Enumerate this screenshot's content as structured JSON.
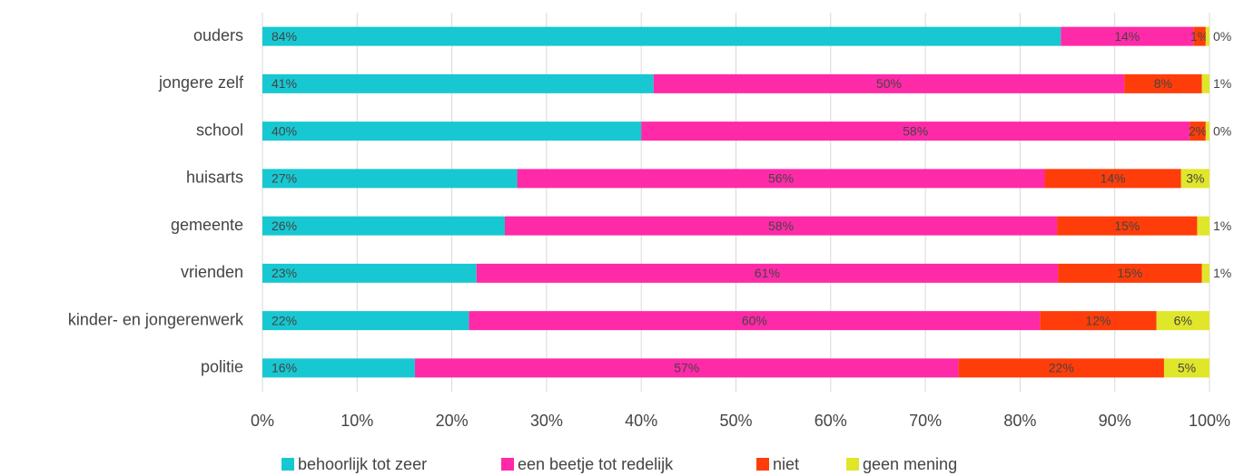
{
  "chart_data": {
    "type": "stacked_bar_horizontal",
    "categories": [
      "ouders",
      "jongere zelf",
      "school",
      "huisarts",
      "gemeente",
      "vrienden",
      "kinder- en jongerenwerk",
      "politie"
    ],
    "series": [
      {
        "name": "behoorlijk tot zeer",
        "color": "#17c8d2",
        "values": [
          84.3,
          41.3,
          40.0,
          26.9,
          25.6,
          22.6,
          21.8,
          16.1
        ],
        "value_labels": [
          "84%",
          "41%",
          "40%",
          "27%",
          "26%",
          "23%",
          "22%",
          "16%"
        ]
      },
      {
        "name": "een beetje tot redelijk",
        "color": "#ff2aa8",
        "values": [
          14.0,
          49.7,
          57.9,
          55.7,
          58.3,
          61.4,
          60.3,
          57.4
        ],
        "value_labels": [
          "14%",
          "50%",
          "58%",
          "56%",
          "58%",
          "61%",
          "60%",
          "57%"
        ]
      },
      {
        "name": "niet",
        "color": "#ff3d0a",
        "values": [
          1.3,
          8.2,
          1.7,
          14.4,
          14.8,
          15.2,
          12.3,
          21.7
        ],
        "value_labels": [
          "1%",
          "8%",
          "2%",
          "14%",
          "15%",
          "15%",
          "12%",
          "22%"
        ]
      },
      {
        "name": "geen mening",
        "color": "#e0e62a",
        "values": [
          0.4,
          0.8,
          0.4,
          3.0,
          1.3,
          0.8,
          5.6,
          4.8
        ],
        "value_labels": [
          "0%",
          "1%",
          "0%",
          "3%",
          "1%",
          "1%",
          "6%",
          "5%"
        ]
      }
    ],
    "xlim": [
      0,
      100
    ],
    "xticks": [
      {
        "value": 0,
        "label": "0%"
      },
      {
        "value": 10,
        "label": "10%"
      },
      {
        "value": 20,
        "label": "20%"
      },
      {
        "value": 30,
        "label": "30%"
      },
      {
        "value": 40,
        "label": "40%"
      },
      {
        "value": 50,
        "label": "50%"
      },
      {
        "value": 60,
        "label": "60%"
      },
      {
        "value": 70,
        "label": "70%"
      },
      {
        "value": 80,
        "label": "80%"
      },
      {
        "value": 90,
        "label": "90%"
      },
      {
        "value": 100,
        "label": "100%"
      }
    ],
    "grid": true,
    "legend": "bottom"
  }
}
